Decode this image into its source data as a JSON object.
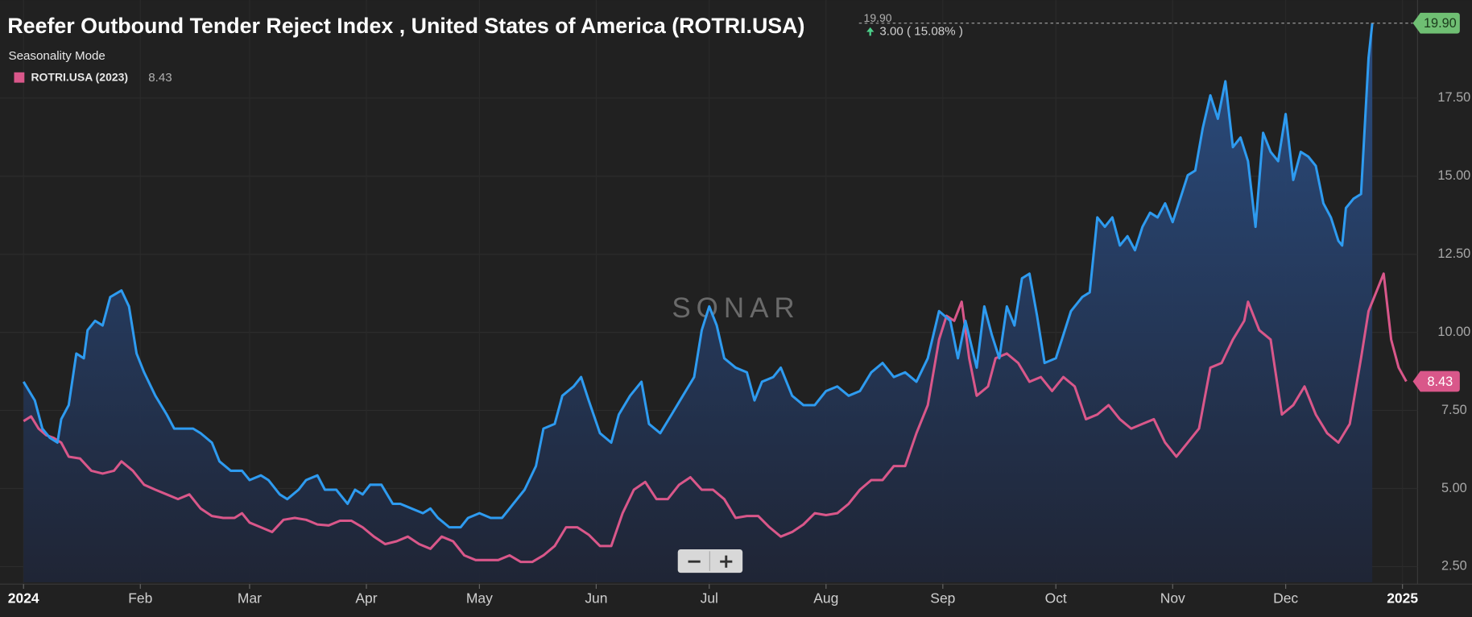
{
  "chart_data": {
    "type": "line",
    "title": "Reefer Outbound Tender Reject Index , United States of America (ROTRI.USA)",
    "current_value_label": "19.90",
    "change": "3.00 ( 15.08% )",
    "mode_label": "Seasonality Mode",
    "watermark": "SONAR",
    "xlim": [
      -5,
      370
    ],
    "ylim": [
      2,
      20.4
    ],
    "xticks": [
      {
        "value": 0,
        "label": "2024"
      },
      {
        "value": 31,
        "label": "Feb"
      },
      {
        "value": 60,
        "label": "Mar"
      },
      {
        "value": 91,
        "label": "Apr"
      },
      {
        "value": 121,
        "label": "May"
      },
      {
        "value": 152,
        "label": "Jun"
      },
      {
        "value": 182,
        "label": "Jul"
      },
      {
        "value": 213,
        "label": "Aug"
      },
      {
        "value": 244,
        "label": "Sep"
      },
      {
        "value": 274,
        "label": "Oct"
      },
      {
        "value": 305,
        "label": "Nov"
      },
      {
        "value": 335,
        "label": "Dec"
      },
      {
        "value": 366,
        "label": "2025"
      }
    ],
    "yticks": [
      {
        "value": 2.5,
        "label": "2.50"
      },
      {
        "value": 5,
        "label": "5.00"
      },
      {
        "value": 7.5,
        "label": "7.50"
      },
      {
        "value": 10,
        "label": "10.00"
      },
      {
        "value": 12.5,
        "label": "12.50"
      },
      {
        "value": 15,
        "label": "15.00"
      },
      {
        "value": 17.5,
        "label": "17.50"
      }
    ],
    "grid": true,
    "series": [
      {
        "color": "#2e9bf0",
        "area": true,
        "badge_color": "#6fbf73",
        "last_label": "19.90",
        "x": [
          0,
          3,
          5,
          7,
          9,
          10,
          12,
          14,
          16,
          17,
          19,
          21,
          23,
          26,
          28,
          30,
          32,
          35,
          38,
          40,
          43,
          45,
          47,
          50,
          52,
          55,
          58,
          60,
          63,
          65,
          68,
          70,
          73,
          75,
          78,
          80,
          83,
          86,
          88,
          90,
          92,
          95,
          98,
          100,
          103,
          106,
          108,
          110,
          113,
          116,
          118,
          121,
          124,
          127,
          130,
          133,
          136,
          138,
          141,
          143,
          146,
          148,
          150,
          153,
          156,
          158,
          161,
          164,
          166,
          169,
          172,
          175,
          178,
          180,
          182,
          184,
          186,
          189,
          192,
          194,
          196,
          199,
          201,
          204,
          207,
          210,
          213,
          216,
          219,
          222,
          225,
          228,
          231,
          234,
          237,
          240,
          243,
          246,
          248,
          250,
          253,
          255,
          257,
          259,
          261,
          263,
          265,
          267,
          269,
          271,
          274,
          276,
          278,
          281,
          283,
          285,
          287,
          289,
          291,
          293,
          295,
          297,
          299,
          301,
          303,
          305,
          307,
          309,
          311,
          313,
          315,
          317,
          319,
          321,
          323,
          325,
          327,
          329,
          331,
          333,
          335,
          337,
          339,
          341,
          343,
          345,
          347,
          349,
          350,
          351,
          353,
          355,
          357,
          358
        ],
        "values": [
          8.42,
          7.82,
          6.92,
          6.62,
          6.47,
          7.22,
          7.67,
          9.32,
          9.17,
          10.07,
          10.37,
          10.22,
          11.13,
          11.34,
          10.83,
          9.32,
          8.72,
          7.97,
          7.37,
          6.92,
          6.92,
          6.92,
          6.77,
          6.47,
          5.87,
          5.57,
          5.57,
          5.27,
          5.42,
          5.27,
          4.81,
          4.66,
          4.96,
          5.27,
          5.42,
          4.96,
          4.96,
          4.51,
          4.96,
          4.81,
          5.12,
          5.12,
          4.51,
          4.51,
          4.36,
          4.21,
          4.36,
          4.06,
          3.76,
          3.76,
          4.06,
          4.21,
          4.06,
          4.06,
          4.51,
          4.96,
          5.72,
          6.92,
          7.07,
          7.97,
          8.27,
          8.57,
          7.82,
          6.77,
          6.47,
          7.37,
          7.97,
          8.42,
          7.07,
          6.77,
          7.37,
          7.97,
          8.57,
          10.07,
          10.83,
          10.22,
          9.17,
          8.87,
          8.72,
          7.82,
          8.42,
          8.57,
          8.87,
          7.97,
          7.67,
          7.67,
          8.12,
          8.27,
          7.97,
          8.12,
          8.72,
          9.02,
          8.57,
          8.72,
          8.42,
          9.17,
          10.68,
          10.37,
          9.17,
          10.37,
          8.87,
          10.83,
          9.92,
          9.17,
          10.83,
          10.22,
          11.73,
          11.88,
          10.53,
          9.02,
          9.17,
          9.92,
          10.68,
          11.13,
          11.28,
          13.68,
          13.38,
          13.68,
          12.78,
          13.08,
          12.63,
          13.38,
          13.83,
          13.68,
          14.13,
          13.53,
          14.28,
          15.03,
          15.18,
          16.54,
          17.59,
          16.84,
          18.04,
          15.93,
          16.24,
          15.48,
          13.38,
          16.39,
          15.78,
          15.48,
          16.99,
          14.88,
          15.78,
          15.63,
          15.33,
          14.13,
          13.68,
          12.93,
          12.78,
          13.98,
          14.28,
          14.43,
          18.79,
          19.9
        ]
      },
      {
        "name": "ROTRI.USA (2023)",
        "color": "#d9578a",
        "area": false,
        "badge_color": "#d9578a",
        "last_label": "8.43",
        "x": [
          0,
          2,
          4,
          6,
          8,
          10,
          12,
          15,
          18,
          21,
          24,
          26,
          29,
          32,
          35,
          38,
          41,
          44,
          47,
          50,
          53,
          56,
          58,
          60,
          63,
          66,
          69,
          72,
          75,
          78,
          81,
          84,
          87,
          90,
          93,
          96,
          99,
          102,
          105,
          108,
          111,
          114,
          117,
          120,
          123,
          126,
          129,
          132,
          135,
          138,
          141,
          144,
          147,
          150,
          153,
          156,
          159,
          162,
          165,
          168,
          171,
          174,
          177,
          180,
          183,
          186,
          189,
          192,
          195,
          198,
          201,
          204,
          207,
          210,
          213,
          216,
          219,
          222,
          225,
          228,
          231,
          234,
          237,
          240,
          243,
          245,
          247,
          249,
          251,
          253,
          256,
          258,
          261,
          264,
          267,
          270,
          273,
          276,
          279,
          282,
          285,
          288,
          291,
          294,
          297,
          300,
          303,
          306,
          309,
          312,
          315,
          318,
          321,
          324,
          325,
          328,
          331,
          334,
          337,
          340,
          343,
          346,
          349,
          352,
          355,
          357,
          359,
          361,
          363,
          365,
          367
        ],
        "values": [
          7.16,
          7.31,
          6.92,
          6.71,
          6.62,
          6.47,
          6.02,
          5.96,
          5.57,
          5.48,
          5.57,
          5.87,
          5.57,
          5.12,
          4.96,
          4.81,
          4.66,
          4.81,
          4.36,
          4.12,
          4.06,
          4.06,
          4.21,
          3.91,
          3.76,
          3.61,
          4.0,
          4.06,
          4.0,
          3.85,
          3.82,
          3.97,
          3.97,
          3.76,
          3.46,
          3.22,
          3.31,
          3.46,
          3.22,
          3.07,
          3.46,
          3.31,
          2.86,
          2.71,
          2.71,
          2.71,
          2.86,
          2.65,
          2.65,
          2.86,
          3.16,
          3.76,
          3.76,
          3.52,
          3.16,
          3.16,
          4.21,
          4.96,
          5.21,
          4.66,
          4.66,
          5.12,
          5.36,
          4.96,
          4.96,
          4.66,
          4.06,
          4.12,
          4.12,
          3.76,
          3.46,
          3.61,
          3.85,
          4.21,
          4.15,
          4.21,
          4.51,
          4.96,
          5.27,
          5.27,
          5.72,
          5.72,
          6.77,
          7.67,
          9.77,
          10.53,
          10.37,
          10.98,
          9.17,
          7.97,
          8.27,
          9.17,
          9.32,
          9.02,
          8.42,
          8.57,
          8.12,
          8.57,
          8.27,
          7.22,
          7.37,
          7.67,
          7.22,
          6.92,
          7.07,
          7.22,
          6.47,
          6.02,
          6.47,
          6.92,
          8.87,
          9.02,
          9.77,
          10.37,
          10.98,
          10.07,
          9.77,
          7.37,
          7.67,
          8.27,
          7.37,
          6.77,
          6.47,
          7.07,
          9.17,
          10.68,
          11.28,
          11.88,
          9.77,
          8.87,
          8.43
        ]
      }
    ]
  }
}
